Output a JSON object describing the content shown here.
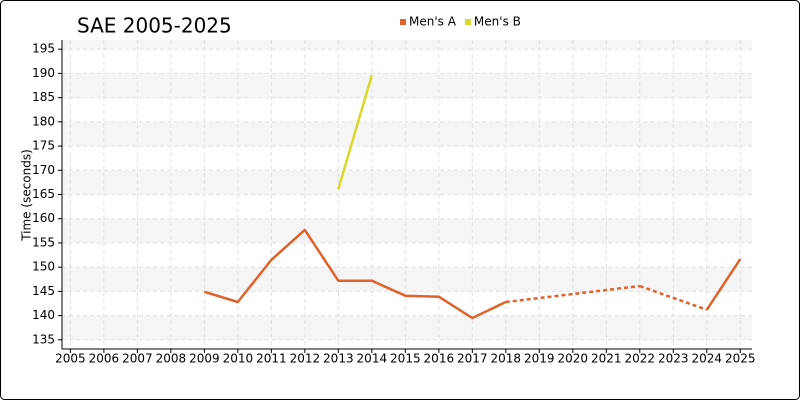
{
  "chart_data": {
    "type": "line",
    "title": "SAE 2005-2025",
    "y_label": "Time (seconds)",
    "x": [
      2005,
      2006,
      2007,
      2008,
      2009,
      2010,
      2011,
      2012,
      2013,
      2014,
      2015,
      2016,
      2017,
      2018,
      2019,
      2020,
      2021,
      2022,
      2023,
      2024,
      2025
    ],
    "series": [
      {
        "name": "Men's A",
        "color": "#e0622a",
        "values": [
          null,
          null,
          null,
          null,
          144.9,
          142.8,
          151.5,
          157.7,
          147.2,
          147.2,
          144.1,
          143.9,
          139.5,
          142.8,
          null,
          null,
          null,
          146.1,
          null,
          141.2,
          151.7
        ]
      },
      {
        "name": "Men's B",
        "color": "#d9d92a",
        "values": [
          null,
          null,
          null,
          null,
          null,
          null,
          null,
          null,
          166.1,
          189.6,
          null,
          null,
          null,
          null,
          null,
          null,
          null,
          null,
          null,
          null,
          null
        ]
      }
    ],
    "xlim": [
      2004.75,
      2025.35
    ],
    "xticks": [
      2005,
      2006,
      2007,
      2008,
      2009,
      2010,
      2011,
      2012,
      2013,
      2014,
      2015,
      2016,
      2017,
      2018,
      2019,
      2020,
      2021,
      2022,
      2023,
      2024,
      2025
    ],
    "ylim": [
      133.1,
      196.9
    ],
    "yticks": [
      135,
      140,
      145,
      150,
      155,
      160,
      165,
      170,
      175,
      180,
      185,
      190,
      195
    ],
    "grid": true,
    "gap_style": "dashed",
    "legend": "top"
  }
}
